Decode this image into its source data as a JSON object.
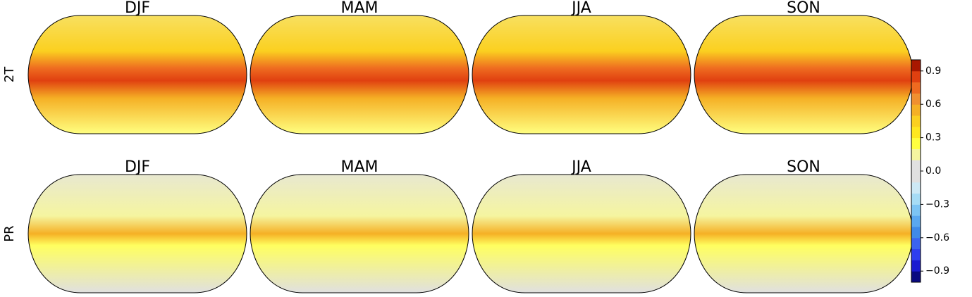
{
  "rows": [
    {
      "label": "2T",
      "titles": [
        "DJF",
        "MAM",
        "JJA",
        "SON"
      ]
    },
    {
      "label": "PR",
      "titles": [
        "DJF",
        "MAM",
        "JJA",
        "SON"
      ]
    }
  ],
  "colorbar": {
    "lim": [
      -1,
      1
    ],
    "ticks": [
      {
        "value": -0.9,
        "label": "−0.9"
      },
      {
        "value": -0.6,
        "label": "−0.6"
      },
      {
        "value": -0.3,
        "label": "−0.3"
      },
      {
        "value": 0,
        "label": "0.0"
      },
      0.3,
      0.6,
      0.9
    ],
    "colors": [
      "#0a0a80",
      "#1a1ad0",
      "#2e3ef0",
      "#3a64f0",
      "#3f8ae8",
      "#5aa8f0",
      "#7cc4f4",
      "#a6dcf5",
      "#cde9f5",
      "#e0e0e0",
      "#e0e0e0",
      "#f5f5a0",
      "#ffff40",
      "#ffe820",
      "#fbd020",
      "#f5b025",
      "#f09030",
      "#ee6a20",
      "#e04010",
      "#a81800"
    ]
  }
}
